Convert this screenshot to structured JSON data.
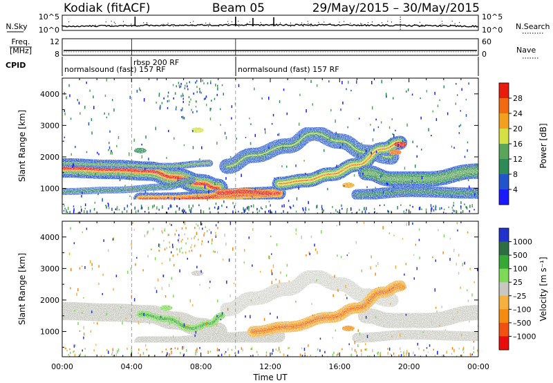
{
  "header": {
    "radar": "Kodiak (fitACF)",
    "beam": "Beam 05",
    "dates": "29/May/2015 – 30/May/2015"
  },
  "strip": {
    "nsky_label": "N.Sky",
    "nsky_ticks": [
      "10^5",
      "10^0"
    ],
    "nsearch_label": "N.Search",
    "nsearch_ticks": [
      "10^5",
      "10^0"
    ],
    "freq_label": "Freq.",
    "freq_unit": "[MHz]",
    "freq_ticks": [
      "12",
      "8"
    ],
    "nave_label": "Nave",
    "nave_ticks": [
      "60",
      "0"
    ],
    "cpid_label": "CPID"
  },
  "cpid_segments": [
    {
      "name": "normalsound (fast) 157 RF",
      "start_h": 0,
      "end_h": 10
    },
    {
      "name": "rbsp 200 RF",
      "start_h": 4,
      "end_h": 10
    },
    {
      "name": "normalsound (fast) 157 RF",
      "start_h": 10,
      "end_h": 24
    }
  ],
  "chart_data": [
    {
      "type": "heatmap",
      "panel": "power",
      "ylabel": "Slant Range [km]",
      "ylim": [
        200,
        4500
      ],
      "yticks": [
        1000,
        2000,
        3000,
        4000
      ],
      "xlim": [
        0,
        24
      ],
      "colorbar": {
        "label": "Power [dB]",
        "ticks": [
          "4",
          "8",
          "12",
          "16",
          "20",
          "24",
          "28"
        ],
        "colors": [
          "#1a1aff",
          "#2255cc",
          "#2e8b57",
          "#5aa55a",
          "#d4e043",
          "#f2a01e",
          "#f06a12",
          "#e81c0c"
        ]
      },
      "features": [
        {
          "x": [
            0,
            6,
            9
          ],
          "y": [
            1650,
            1350,
            1000
          ],
          "level": "high"
        },
        {
          "x": [
            5,
            8,
            12
          ],
          "y": [
            650,
            700,
            850
          ],
          "level": "high"
        },
        {
          "x": [
            10,
            14.5,
            18
          ],
          "y": [
            1800,
            2800,
            2000
          ],
          "level": "low"
        },
        {
          "x": [
            13,
            16.5,
            19
          ],
          "y": [
            1100,
            1700,
            2450
          ],
          "level": "medium"
        },
        {
          "x": [
            18,
            24
          ],
          "y": [
            1350,
            1250
          ],
          "level": "medium"
        }
      ]
    },
    {
      "type": "heatmap",
      "panel": "velocity",
      "xlabel": "Time UT",
      "ylabel": "Slant Range [km]",
      "ylim": [
        200,
        4500
      ],
      "yticks": [
        1000,
        2000,
        3000,
        4000
      ],
      "xlim": [
        0,
        24
      ],
      "xticks": [
        "00:00",
        "04:00",
        "08:00",
        "12:00",
        "16:00",
        "20:00",
        "00:00"
      ],
      "colorbar": {
        "label": "Velocity [m s⁻¹]",
        "ticks": [
          "1000",
          "500",
          "100",
          "25",
          "–25",
          "–100",
          "–500",
          "–1000"
        ],
        "colors": [
          "#2233cc",
          "#2e6e45",
          "#36a836",
          "#7ed957",
          "#c8c8c0",
          "#f5b040",
          "#f58a10",
          "#f05010",
          "#e80c0c"
        ]
      },
      "features": [
        {
          "x": [
            0,
            6,
            9
          ],
          "y": [
            1650,
            1350,
            1000
          ],
          "velocity": "~0 (ground scatter)"
        },
        {
          "x": [
            5,
            8,
            12
          ],
          "y": [
            650,
            700,
            850
          ],
          "velocity": "~0 (ground scatter)"
        },
        {
          "x": [
            4.5,
            7.5,
            9
          ],
          "y": [
            1550,
            1100,
            1450
          ],
          "velocity": "+100 to +500"
        },
        {
          "x": [
            11,
            16,
            19
          ],
          "y": [
            1000,
            1400,
            2400
          ],
          "velocity": "-100 to -500"
        }
      ]
    }
  ]
}
